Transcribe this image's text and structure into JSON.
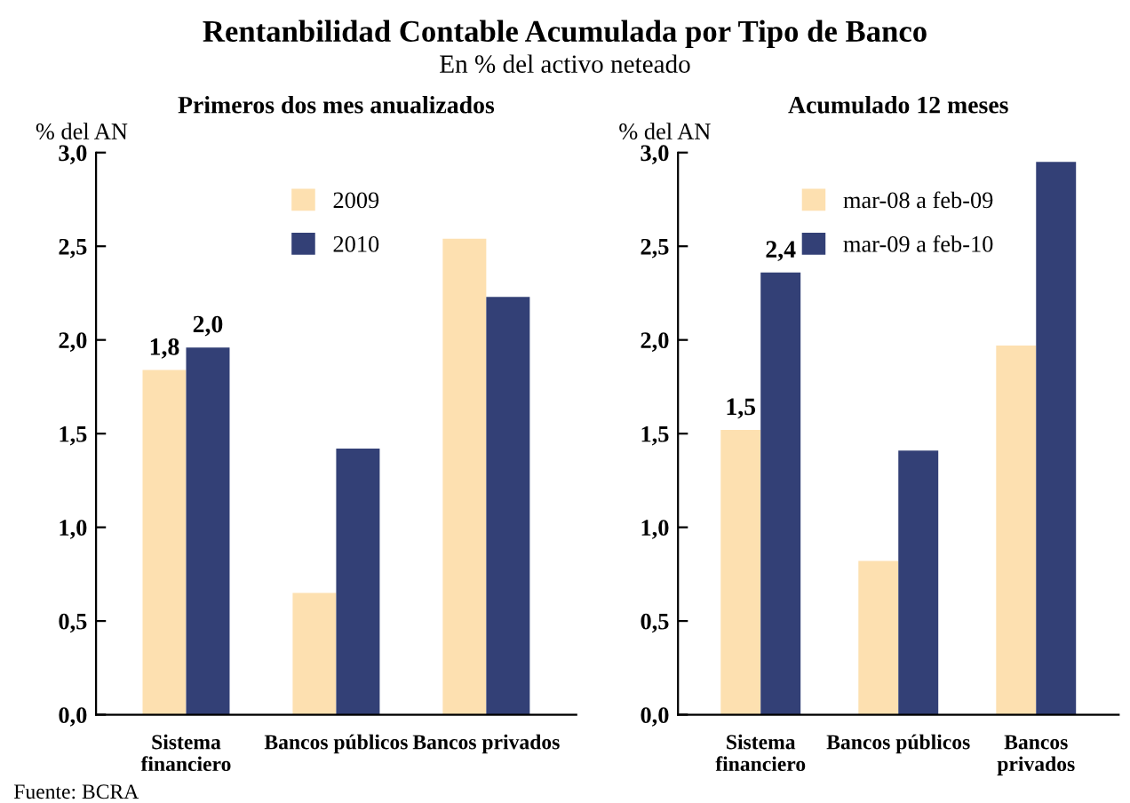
{
  "chart_data": [
    {
      "type": "other",
      "title": "Rentanbilidad Contable Acumulada por Tipo de Banco",
      "subtitle": "En % del activo neteado",
      "annotations": [
        "Fuente: BCRA"
      ]
    },
    {
      "type": "bar",
      "title": "Primeros dos mes anualizados",
      "ylabel": "% del AN",
      "categories": [
        "Sistema\nfinanciero",
        "Bancos públicos",
        "Bancos privados"
      ],
      "series": [
        {
          "name": "2009",
          "color": "#fde0b0",
          "values": [
            1.84,
            0.65,
            2.54
          ],
          "value_labels": [
            "1,8",
            null,
            null
          ]
        },
        {
          "name": "2010",
          "color": "#334076",
          "values": [
            1.96,
            1.42,
            2.23
          ],
          "value_labels": [
            "2,0",
            null,
            null
          ]
        }
      ],
      "ylim": [
        0,
        3
      ],
      "yticks": [
        {
          "value": 0,
          "label": "0,0"
        },
        {
          "value": 0.5,
          "label": "0,5"
        },
        {
          "value": 1,
          "label": "1,0"
        },
        {
          "value": 1.5,
          "label": "1,5"
        },
        {
          "value": 2,
          "label": "2,0"
        },
        {
          "value": 2.5,
          "label": "2,5"
        },
        {
          "value": 3,
          "label": "3,0"
        }
      ],
      "legend": "top",
      "grid": false
    },
    {
      "type": "bar",
      "title": "Acumulado 12 meses",
      "ylabel": "% del AN",
      "categories": [
        "Sistema\nfinanciero",
        "Bancos públicos",
        "Bancos\nprivados"
      ],
      "series": [
        {
          "name": "mar-08 a feb-09",
          "color": "#fde0b0",
          "values": [
            1.52,
            0.82,
            1.97
          ],
          "value_labels": [
            "1,5",
            null,
            null
          ]
        },
        {
          "name": "mar-09 a feb-10",
          "color": "#334076",
          "values": [
            2.36,
            1.41,
            2.95
          ],
          "value_labels": [
            "2,4",
            null,
            null
          ]
        }
      ],
      "ylim": [
        0,
        3
      ],
      "yticks": [
        {
          "value": 0,
          "label": "0,0"
        },
        {
          "value": 0.5,
          "label": "0,5"
        },
        {
          "value": 1,
          "label": "1,0"
        },
        {
          "value": 1.5,
          "label": "1,5"
        },
        {
          "value": 2,
          "label": "2,0"
        },
        {
          "value": 2.5,
          "label": "2,5"
        },
        {
          "value": 3,
          "label": "3,0"
        }
      ],
      "legend": "top",
      "grid": false
    }
  ]
}
